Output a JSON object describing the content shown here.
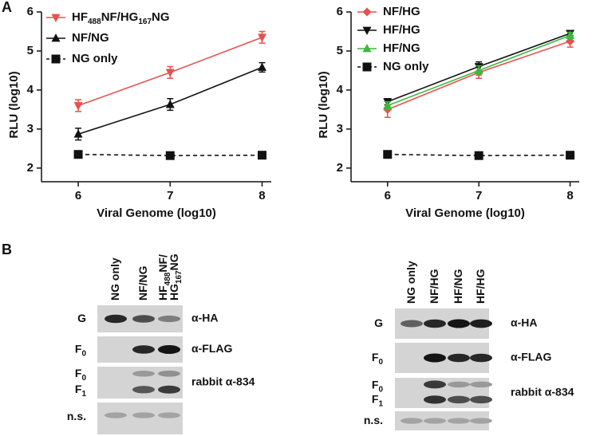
{
  "panels": {
    "a": "A",
    "b": "B"
  },
  "chart_data": [
    {
      "type": "line",
      "ylabel": "RLU (log10)",
      "xlabel": "Viral Genome (log10)",
      "x": [
        6,
        7,
        8
      ],
      "xlim": [
        5.6,
        8.1
      ],
      "xticks": [
        6,
        7,
        8
      ],
      "ylim": [
        1.65,
        6
      ],
      "yticks": [
        2,
        3,
        4,
        5,
        6
      ],
      "series": [
        {
          "name": "HF488NF/HG167NG",
          "color": "#e8504f",
          "marker": "triangle-down",
          "values": [
            3.6,
            4.45,
            5.35
          ],
          "errors": [
            0.15,
            0.15,
            0.15
          ]
        },
        {
          "name": "NF/NG",
          "color": "#111111",
          "marker": "triangle-up",
          "values": [
            2.87,
            3.63,
            4.58
          ],
          "errors": [
            0.15,
            0.15,
            0.12
          ]
        },
        {
          "name": "NG only",
          "color": "#111111",
          "marker": "square",
          "dashed": true,
          "values": [
            2.35,
            2.32,
            2.33
          ],
          "errors": [
            0.05,
            0.04,
            0.04
          ]
        }
      ]
    },
    {
      "type": "line",
      "ylabel": "RLU (log10)",
      "xlabel": "Viral Genome (log10)",
      "x": [
        6,
        7,
        8
      ],
      "xlim": [
        5.6,
        8.1
      ],
      "xticks": [
        6,
        7,
        8
      ],
      "ylim": [
        1.65,
        6
      ],
      "yticks": [
        2,
        3,
        4,
        5,
        6
      ],
      "series": [
        {
          "name": "NF/HG",
          "color": "#e8504f",
          "marker": "diamond",
          "values": [
            3.5,
            4.45,
            5.25
          ],
          "errors": [
            0.2,
            0.15,
            0.15
          ]
        },
        {
          "name": "HF/HG",
          "color": "#111111",
          "marker": "triangle-down",
          "values": [
            3.7,
            4.6,
            5.45
          ],
          "errors": [
            0.08,
            0.12,
            0.06
          ]
        },
        {
          "name": "HF/NG",
          "color": "#3cb83c",
          "marker": "triangle-up",
          "values": [
            3.6,
            4.5,
            5.4
          ],
          "errors": [
            0.1,
            0.12,
            0.08
          ]
        },
        {
          "name": "NG only",
          "color": "#111111",
          "marker": "square",
          "dashed": true,
          "values": [
            2.35,
            2.32,
            2.33
          ],
          "errors": [
            0.05,
            0.04,
            0.04
          ]
        }
      ]
    }
  ],
  "blots": [
    {
      "lanes": [
        [
          "NG only"
        ],
        [
          "NF/NG"
        ],
        [
          "HF488NF/",
          "HG167NG"
        ]
      ],
      "rows": [
        {
          "labels": [
            "G"
          ],
          "antibody": "α-HA"
        },
        {
          "labels": [
            "F0"
          ],
          "antibody": "α-FLAG"
        },
        {
          "labels": [
            "F0",
            "F1"
          ],
          "antibody": "rabbit α-834"
        },
        {
          "labels": [
            "n.s."
          ]
        }
      ]
    },
    {
      "lanes": [
        [
          "NG only"
        ],
        [
          "NF/HG"
        ],
        [
          "HF/NG"
        ],
        [
          "HF/HG"
        ]
      ],
      "rows": [
        {
          "labels": [
            "G"
          ],
          "antibody": "α-HA"
        },
        {
          "labels": [
            "F0"
          ],
          "antibody": "α-FLAG"
        },
        {
          "labels": [
            "F0",
            "F1"
          ],
          "antibody": "rabbit α-834"
        },
        {
          "labels": [
            "n.s."
          ]
        }
      ]
    }
  ]
}
